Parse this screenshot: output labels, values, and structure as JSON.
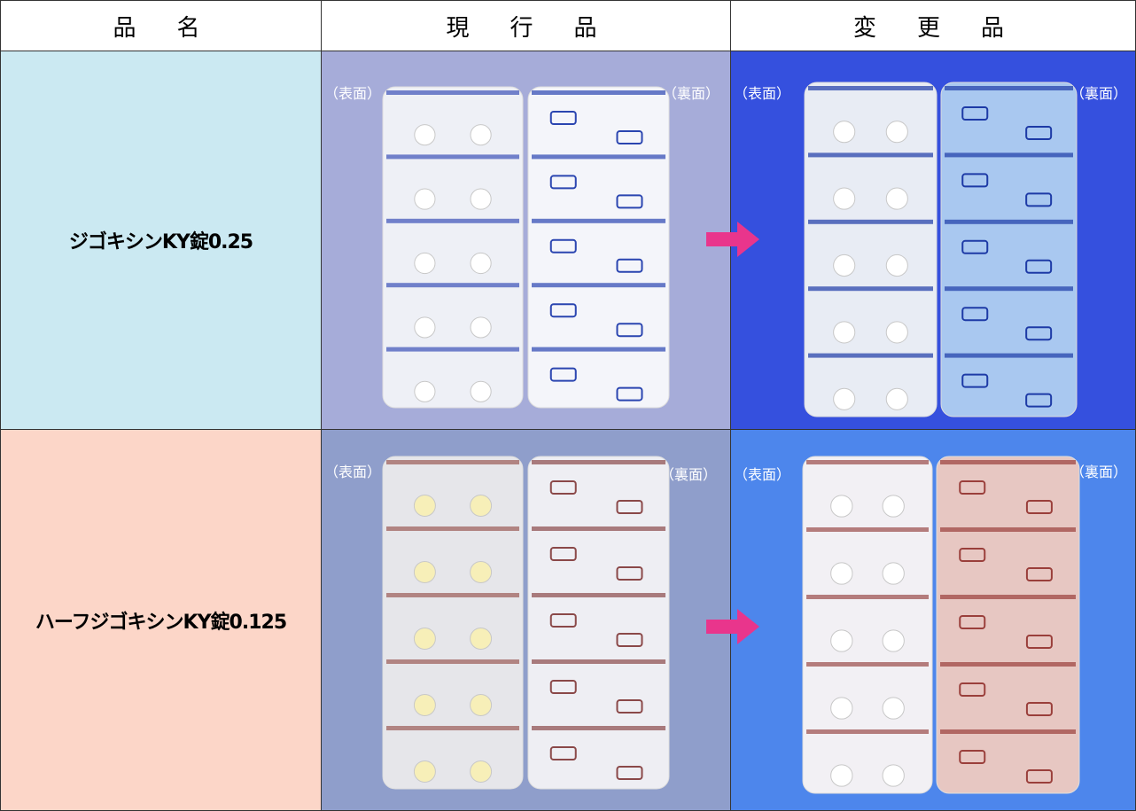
{
  "table": {
    "header": [
      "品　名",
      "現　行　品",
      "変　更　品"
    ],
    "rows": [
      {
        "name": "ジゴキシンKY錠0.25",
        "current": {
          "front": "（表面）",
          "back": "（裏面）"
        },
        "changed": {
          "front": "（表面）",
          "back": "（裏面）"
        }
      },
      {
        "name": "ハーフジゴキシンKY錠0.125",
        "current": {
          "front": "（表面）",
          "back": "（裏面）"
        },
        "changed": {
          "front": "（表面）",
          "back": "（裏面）"
        }
      }
    ]
  }
}
